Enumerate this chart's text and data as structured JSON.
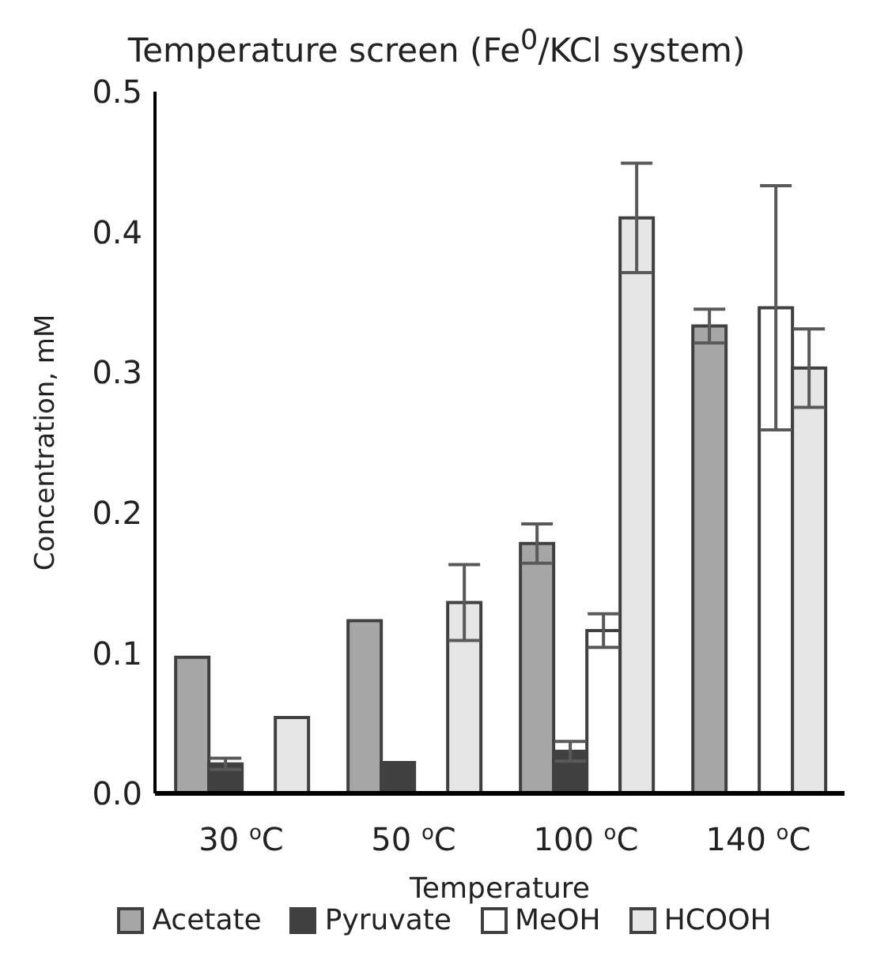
{
  "chart_data": {
    "type": "bar",
    "title": "Temperature screen (Fe$^{0}$/KCl system)",
    "xlabel": "Temperature",
    "ylabel": "Concentration, mM",
    "categories": [
      "30 $^{o}$C",
      "50 $^{o}$C",
      "100 $^{o}$C",
      "140 $^{o}$C"
    ],
    "series": [
      {
        "name": "Acetate",
        "color": "#a6a6a6",
        "values": [
          0.097,
          0.123,
          0.178,
          0.333
        ],
        "errors": [
          null,
          null,
          0.014,
          0.012
        ]
      },
      {
        "name": "Pyruvate",
        "color": "#404040",
        "values": [
          0.021,
          0.022,
          0.03,
          null
        ],
        "errors": [
          0.004,
          null,
          0.007,
          null
        ]
      },
      {
        "name": "MeOH",
        "color": "#ffffff",
        "values": [
          null,
          null,
          0.116,
          0.346
        ],
        "errors": [
          null,
          null,
          0.012,
          0.087
        ]
      },
      {
        "name": "HCOOH",
        "color": "#e6e6e6",
        "values": [
          0.054,
          0.136,
          0.41,
          0.303
        ],
        "errors": [
          null,
          0.027,
          0.039,
          0.028
        ]
      }
    ],
    "ylim": [
      0,
      0.5
    ],
    "yticks": [
      {
        "value": 0,
        "label": "0.0"
      },
      0.1,
      0.2,
      0.3,
      0.4,
      0.5
    ],
    "grid": false,
    "legend": "bottom"
  }
}
